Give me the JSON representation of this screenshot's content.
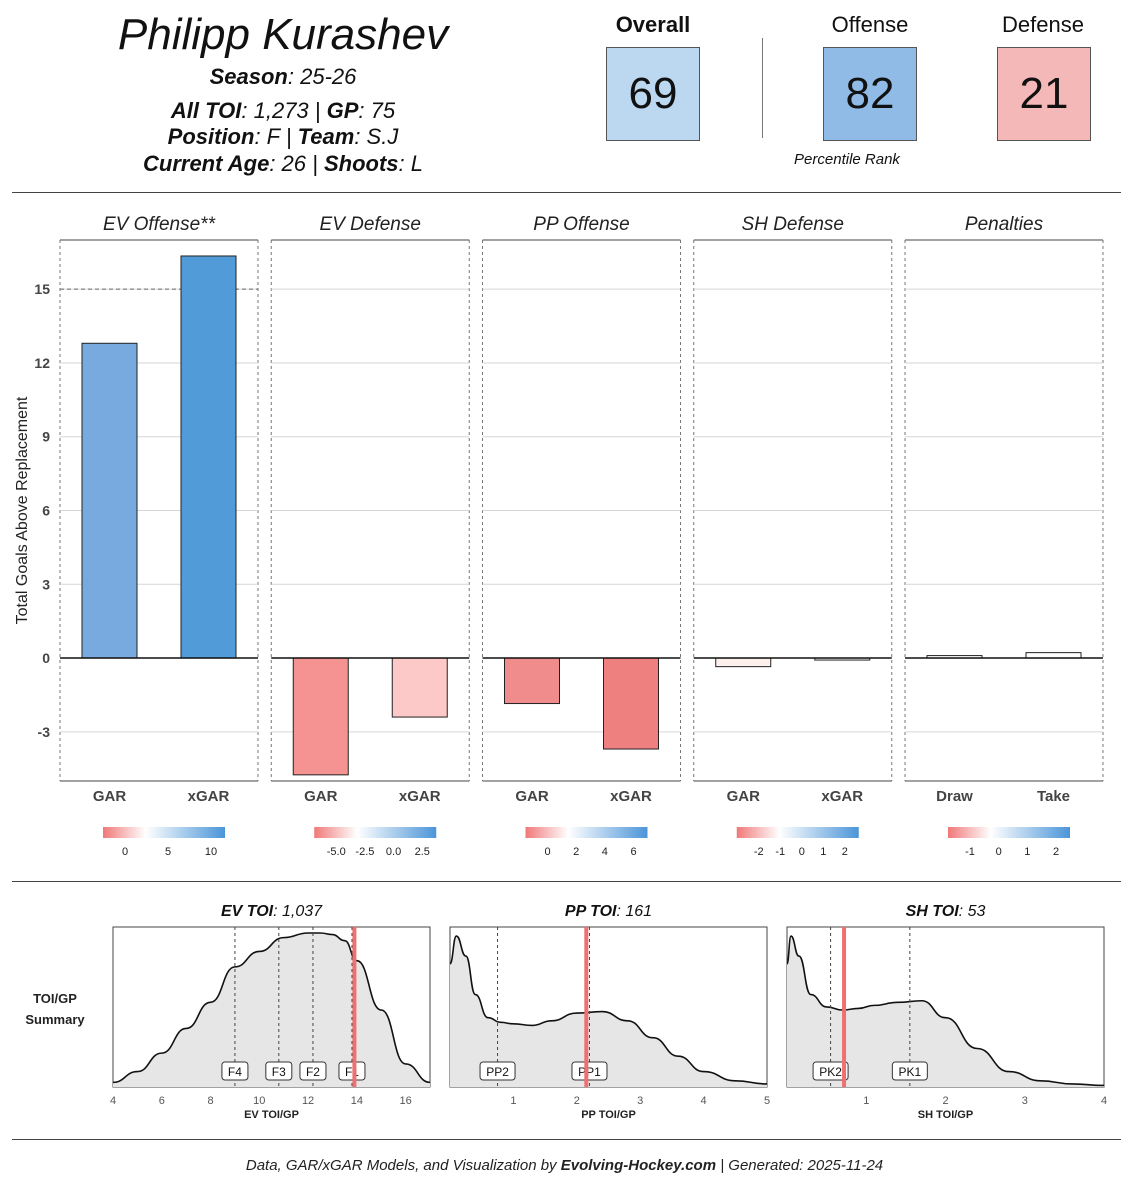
{
  "header": {
    "player_name": "Philipp Kurashev",
    "season_label": "Season",
    "season_value": ": 25-26",
    "toi_label": "All TOI",
    "toi_value": ": 1,273 | ",
    "gp_label": "GP",
    "gp_value": ": 75",
    "position_label": "Position",
    "position_value": ": F | ",
    "team_label": "Team",
    "team_value": ": S.J",
    "age_label": "Current Age",
    "age_value": ": 26 | ",
    "shoots_label": "Shoots",
    "shoots_value": ": L"
  },
  "ranks": {
    "overall_label": "Overall",
    "overall_value": "69",
    "offense_label": "Offense",
    "offense_value": "82",
    "defense_label": "Defense",
    "defense_value": "21",
    "percentile_caption": "Percentile Rank",
    "colors": {
      "overall": "#bcd7f0",
      "offense": "#8fbbe6",
      "defense": "#f5b8b8"
    }
  },
  "chart_data": [
    {
      "type": "bar",
      "ylabel": "Total Goals Above Replacement",
      "ylim": [
        -5,
        17
      ],
      "yticks": [
        -3,
        0,
        3,
        6,
        9,
        12,
        15
      ],
      "ytick_labels": [
        "-3",
        "0",
        "3",
        "6",
        "9",
        "12",
        "15"
      ],
      "reference_line": 15,
      "panels": [
        {
          "title": "EV Offense**",
          "categories": [
            "GAR",
            "xGAR"
          ],
          "values": [
            12.8,
            16.35
          ],
          "colors": [
            "#79aadf",
            "#519bd9"
          ],
          "legend_ticks": [
            "0",
            "5",
            "10"
          ]
        },
        {
          "title": "EV Defense",
          "categories": [
            "GAR",
            "xGAR"
          ],
          "values": [
            -4.75,
            -2.4
          ],
          "colors": [
            "#f59393",
            "#fdc8c8"
          ],
          "legend_ticks": [
            "-5.0",
            "-2.5",
            "0.0",
            "2.5"
          ]
        },
        {
          "title": "PP Offense",
          "categories": [
            "GAR",
            "xGAR"
          ],
          "values": [
            -1.85,
            -3.7
          ],
          "colors": [
            "#f18c8c",
            "#ef8080"
          ],
          "legend_ticks": [
            "0",
            "2",
            "4",
            "6"
          ]
        },
        {
          "title": "SH Defense",
          "categories": [
            "GAR",
            "xGAR"
          ],
          "values": [
            -0.35,
            -0.08
          ],
          "colors": [
            "#fdf0ec",
            "#ffffff"
          ],
          "legend_ticks": [
            "-2",
            "-1",
            "0",
            "1",
            "2"
          ]
        },
        {
          "title": "Penalties",
          "categories": [
            "Draw",
            "Take"
          ],
          "values": [
            0.1,
            0.22
          ],
          "colors": [
            "#ffffff",
            "#ffffff"
          ],
          "legend_ticks": [
            "-1",
            "0",
            "1",
            "2"
          ]
        }
      ]
    },
    {
      "type": "area",
      "row_label_1": "TOI/GP",
      "row_label_2": "Summary",
      "panels": [
        {
          "title_bold": "EV TOI",
          "title_rest": ": 1,037",
          "xlabel": "EV TOI/GP",
          "xlim": [
            4,
            17
          ],
          "xticks": [
            "4",
            "6",
            "8",
            "10",
            "12",
            "14",
            "16"
          ],
          "curve_x": [
            4,
            5,
            6,
            7,
            8,
            9,
            10,
            11,
            12,
            12.5,
            13,
            13.5,
            14,
            15,
            16,
            17
          ],
          "curve_y": [
            0.03,
            0.1,
            0.22,
            0.38,
            0.55,
            0.78,
            0.88,
            0.97,
            1.0,
            1.0,
            0.99,
            0.95,
            0.82,
            0.5,
            0.15,
            0.03
          ],
          "player_value": 13.9,
          "markers": [
            {
              "label": "F4",
              "x": 9.0
            },
            {
              "label": "F3",
              "x": 10.8
            },
            {
              "label": "F2",
              "x": 12.2
            },
            {
              "label": "F1",
              "x": 13.8
            }
          ]
        },
        {
          "title_bold": "PP TOI",
          "title_rest": ": 161",
          "xlabel": "PP TOI/GP",
          "xlim": [
            0,
            5
          ],
          "xticks": [
            "1",
            "2",
            "3",
            "4",
            "5"
          ],
          "curve_x": [
            0,
            0.1,
            0.25,
            0.4,
            0.6,
            0.8,
            1.0,
            1.3,
            1.6,
            2.0,
            2.4,
            2.8,
            3.2,
            3.6,
            4.0,
            4.5,
            5.0
          ],
          "curve_y": [
            0.8,
            0.98,
            0.85,
            0.6,
            0.45,
            0.42,
            0.41,
            0.4,
            0.43,
            0.48,
            0.49,
            0.43,
            0.32,
            0.2,
            0.1,
            0.04,
            0.02
          ],
          "player_value": 2.15,
          "markers": [
            {
              "label": "PP2",
              "x": 0.75
            },
            {
              "label": "PP1",
              "x": 2.2
            }
          ]
        },
        {
          "title_bold": "SH TOI",
          "title_rest": ": 53",
          "xlabel": "SH TOI/GP",
          "xlim": [
            0,
            4
          ],
          "xticks": [
            "1",
            "2",
            "3",
            "4"
          ],
          "curve_x": [
            0,
            0.05,
            0.15,
            0.3,
            0.5,
            0.7,
            0.9,
            1.1,
            1.4,
            1.7,
            2.0,
            2.4,
            2.8,
            3.2,
            3.6,
            4.0
          ],
          "curve_y": [
            0.8,
            0.98,
            0.85,
            0.6,
            0.52,
            0.5,
            0.51,
            0.53,
            0.55,
            0.56,
            0.45,
            0.25,
            0.1,
            0.04,
            0.02,
            0.01
          ],
          "player_value": 0.72,
          "markers": [
            {
              "label": "PK2",
              "x": 0.55
            },
            {
              "label": "PK1",
              "x": 1.55
            }
          ]
        }
      ]
    }
  ],
  "footer": {
    "prefix": "Data, GAR/xGAR Models, and Visualization by ",
    "brand": "Evolving-Hockey.com",
    "suffix": " | Generated: 2025-11-24"
  }
}
